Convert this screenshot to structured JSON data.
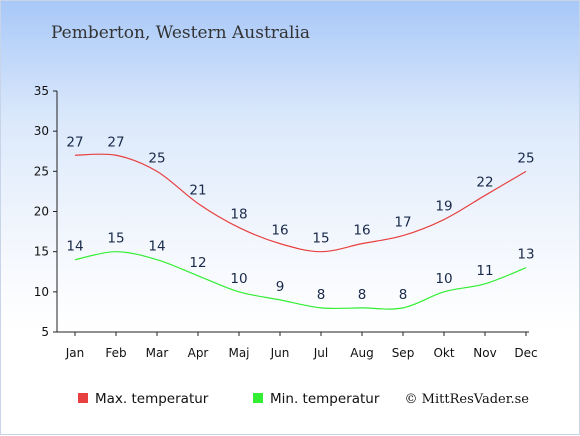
{
  "chart_data": {
    "type": "line",
    "title": "Pemberton, Western Australia",
    "categories": [
      "Jan",
      "Feb",
      "Mar",
      "Apr",
      "Maj",
      "Jun",
      "Jul",
      "Aug",
      "Sep",
      "Okt",
      "Nov",
      "Dec"
    ],
    "series": [
      {
        "name": "Max. temperatur",
        "color": "#e84040",
        "values": [
          27,
          27,
          25,
          21,
          18,
          16,
          15,
          16,
          17,
          19,
          22,
          25
        ]
      },
      {
        "name": "Min. temperatur",
        "color": "#33ee33",
        "values": [
          14,
          15,
          14,
          12,
          10,
          9,
          8,
          8,
          8,
          10,
          11,
          13
        ]
      }
    ],
    "ylim": [
      5,
      35
    ],
    "yticks": [
      5,
      10,
      15,
      20,
      25,
      30,
      35
    ],
    "grid": false,
    "legend_position": "bottom-left"
  },
  "copyright": "© MittResVader.se"
}
